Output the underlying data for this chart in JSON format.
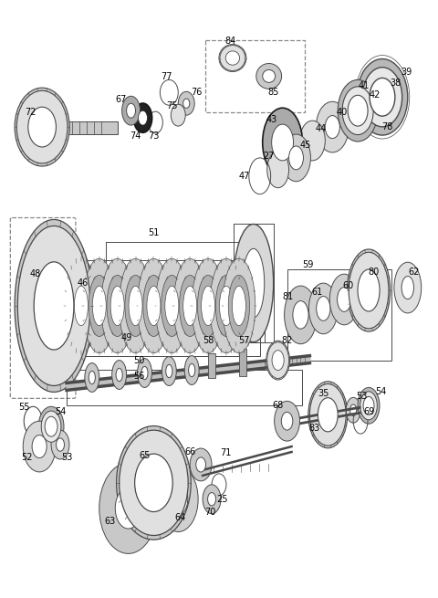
{
  "bg_color": "#ffffff",
  "lc": "#4a4a4a",
  "dc": "#1a1a1a",
  "fig_width": 4.8,
  "fig_height": 6.55,
  "dpi": 100
}
